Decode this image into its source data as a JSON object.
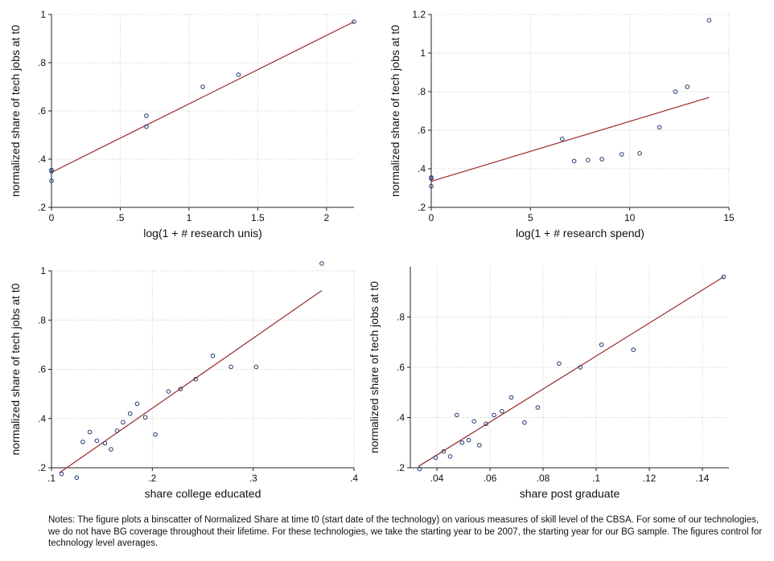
{
  "chart_data": [
    {
      "type": "scatter",
      "xlabel": "log(1 + # research unis)",
      "ylabel": "normalized share of tech jobs at t0",
      "xlim": [
        0,
        2.2
      ],
      "ylim": [
        0.2,
        1.0
      ],
      "xticks": [
        0,
        0.5,
        1,
        1.5,
        2
      ],
      "xtick_labels": [
        "0",
        ".5",
        "1",
        "1.5",
        "2"
      ],
      "yticks": [
        0.2,
        0.4,
        0.6,
        0.8,
        1.0
      ],
      "ytick_labels": [
        ".2",
        ".4",
        ".6",
        ".8",
        "1"
      ],
      "grid": true,
      "points": [
        [
          0,
          0.31
        ],
        [
          0,
          0.35
        ],
        [
          0,
          0.355
        ],
        [
          0.69,
          0.535
        ],
        [
          0.69,
          0.58
        ],
        [
          1.1,
          0.7
        ],
        [
          1.36,
          0.75
        ],
        [
          2.2,
          0.97
        ]
      ],
      "fit_line": [
        [
          0,
          0.345
        ],
        [
          2.2,
          0.97
        ]
      ]
    },
    {
      "type": "scatter",
      "xlabel": "log(1 + # research spend)",
      "ylabel": "normalized share of tech jobs at t0",
      "xlim": [
        0,
        15
      ],
      "ylim": [
        0.2,
        1.2
      ],
      "xticks": [
        0,
        5,
        10,
        15
      ],
      "xtick_labels": [
        "0",
        "5",
        "10",
        "15"
      ],
      "yticks": [
        0.2,
        0.4,
        0.6,
        0.8,
        1.0,
        1.2
      ],
      "ytick_labels": [
        ".2",
        ".4",
        ".6",
        ".8",
        "1",
        "1.2"
      ],
      "grid": true,
      "points": [
        [
          0,
          0.31
        ],
        [
          0,
          0.35
        ],
        [
          0,
          0.355
        ],
        [
          6.6,
          0.555
        ],
        [
          7.2,
          0.44
        ],
        [
          7.9,
          0.445
        ],
        [
          8.6,
          0.45
        ],
        [
          9.6,
          0.475
        ],
        [
          10.5,
          0.48
        ],
        [
          11.5,
          0.615
        ],
        [
          12.3,
          0.8
        ],
        [
          12.9,
          0.825
        ],
        [
          14.0,
          1.17
        ]
      ],
      "fit_line": [
        [
          0,
          0.335
        ],
        [
          14.0,
          0.77
        ]
      ]
    },
    {
      "type": "scatter",
      "xlabel": "share college educated",
      "ylabel": "normalized share of tech jobs at t0",
      "xlim": [
        0.1,
        0.4
      ],
      "ylim": [
        0.2,
        1.0
      ],
      "xticks": [
        0.1,
        0.2,
        0.3,
        0.4
      ],
      "xtick_labels": [
        ".1",
        ".2",
        ".3",
        ".4"
      ],
      "yticks": [
        0.2,
        0.4,
        0.6,
        0.8,
        1.0
      ],
      "ytick_labels": [
        ".2",
        ".4",
        ".6",
        ".8",
        "1"
      ],
      "grid": true,
      "points": [
        [
          0.11,
          0.175
        ],
        [
          0.125,
          0.16
        ],
        [
          0.131,
          0.305
        ],
        [
          0.138,
          0.345
        ],
        [
          0.145,
          0.31
        ],
        [
          0.153,
          0.3
        ],
        [
          0.159,
          0.275
        ],
        [
          0.165,
          0.35
        ],
        [
          0.171,
          0.385
        ],
        [
          0.178,
          0.42
        ],
        [
          0.185,
          0.46
        ],
        [
          0.193,
          0.405
        ],
        [
          0.203,
          0.335
        ],
        [
          0.216,
          0.51
        ],
        [
          0.228,
          0.52
        ],
        [
          0.243,
          0.56
        ],
        [
          0.26,
          0.655
        ],
        [
          0.278,
          0.61
        ],
        [
          0.303,
          0.61
        ],
        [
          0.368,
          1.03
        ]
      ],
      "fit_line": [
        [
          0.108,
          0.18
        ],
        [
          0.368,
          0.92
        ]
      ]
    },
    {
      "type": "scatter",
      "xlabel": "share post graduate",
      "ylabel": "normalized share of tech jobs at t0",
      "xlim": [
        0.03,
        0.15
      ],
      "ylim": [
        0.2,
        1.0
      ],
      "xticks": [
        0.04,
        0.06,
        0.08,
        0.1,
        0.12,
        0.14
      ],
      "xtick_labels": [
        ".04",
        ".06",
        ".08",
        ".1",
        ".12",
        ".14"
      ],
      "yticks": [
        0.2,
        0.4,
        0.6,
        0.8
      ],
      "ytick_labels": [
        ".2",
        ".4",
        ".6",
        ".8"
      ],
      "grid": true,
      "points": [
        [
          0.0335,
          0.195
        ],
        [
          0.0395,
          0.24
        ],
        [
          0.0425,
          0.265
        ],
        [
          0.045,
          0.245
        ],
        [
          0.0475,
          0.41
        ],
        [
          0.0495,
          0.3
        ],
        [
          0.052,
          0.31
        ],
        [
          0.054,
          0.385
        ],
        [
          0.056,
          0.29
        ],
        [
          0.0585,
          0.375
        ],
        [
          0.0615,
          0.41
        ],
        [
          0.0645,
          0.425
        ],
        [
          0.068,
          0.48
        ],
        [
          0.073,
          0.38
        ],
        [
          0.078,
          0.44
        ],
        [
          0.086,
          0.615
        ],
        [
          0.094,
          0.6
        ],
        [
          0.102,
          0.69
        ],
        [
          0.114,
          0.67
        ],
        [
          0.148,
          0.96
        ]
      ],
      "fit_line": [
        [
          0.033,
          0.205
        ],
        [
          0.148,
          0.96
        ]
      ]
    }
  ],
  "notes": "Notes: The figure plots a binscatter of Normalized Share at time t0 (start date of the technology) on various measures of skill level of the CBSA. For some of our technologies, we do not have BG coverage throughout their lifetime. For these technologies, we take the starting year to be 2007, the starting year for our BG sample. The figures control for technology level averages.",
  "colors": {
    "points": "#1f3a6e",
    "fit_line": "#9b2a2a",
    "grid": "#c8c8c8",
    "axis": "#222222"
  }
}
